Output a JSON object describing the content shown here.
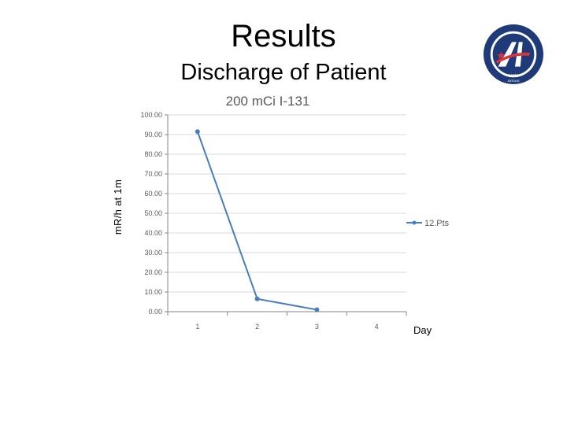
{
  "slide": {
    "title": "Results",
    "subtitle": "Discharge of Patient"
  },
  "logo": {
    "icon": "university-seal-icon",
    "top_text": "AKDENİZ ÜNİVERSİTESİ",
    "year": "1982",
    "city": "ANTALYA",
    "colors": {
      "navy": "#1f3a78",
      "red": "#d9343a",
      "white": "#ffffff"
    }
  },
  "chart_data": {
    "type": "line",
    "title": "200 mCi I-131",
    "xlabel": "Day",
    "ylabel": "mR/h  at  1m",
    "categories": [
      "1",
      "2",
      "3",
      "4"
    ],
    "series": [
      {
        "name": "12.Pts",
        "values": [
          91.5,
          6.5,
          1.0,
          null
        ],
        "color": "#4a7ebb"
      }
    ],
    "yticks": [
      "0.00",
      "10.00",
      "20.00",
      "30.00",
      "40.00",
      "50.00",
      "60.00",
      "70.00",
      "80.00",
      "90.00",
      "100.00"
    ],
    "ylim": [
      0,
      100
    ],
    "grid": true,
    "legend": "right"
  }
}
